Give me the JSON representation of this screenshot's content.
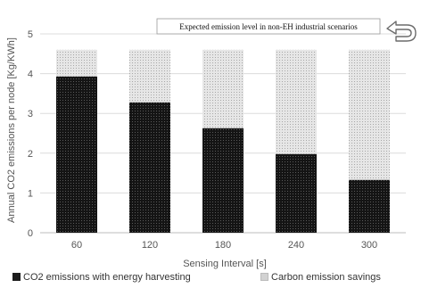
{
  "chart_data": {
    "type": "bar",
    "stacked": true,
    "categories": [
      "60",
      "120",
      "180",
      "240",
      "300"
    ],
    "series": [
      {
        "name": "CO2 emissions with energy harvesting",
        "values": [
          3.93,
          3.28,
          2.63,
          1.98,
          1.33
        ],
        "color": "#1c1c1c"
      },
      {
        "name": "Carbon emission savings",
        "values": [
          0.67,
          1.32,
          1.97,
          2.62,
          3.27
        ],
        "color": "#d2d2d2"
      }
    ],
    "xlabel": "Sensing Interval [s]",
    "ylabel": "Annual CO2 emissions per node [Kg/KWh]",
    "ylim": [
      0,
      5
    ],
    "yticks": [
      "0",
      "1",
      "2",
      "3",
      "4",
      "5"
    ],
    "grid": "horizontal",
    "legend_position": "bottom",
    "annotation": {
      "text": "Expected emission level in non-EH industrial scenarios",
      "value": 4.6,
      "icon": "u-turn-arrow-icon"
    }
  }
}
